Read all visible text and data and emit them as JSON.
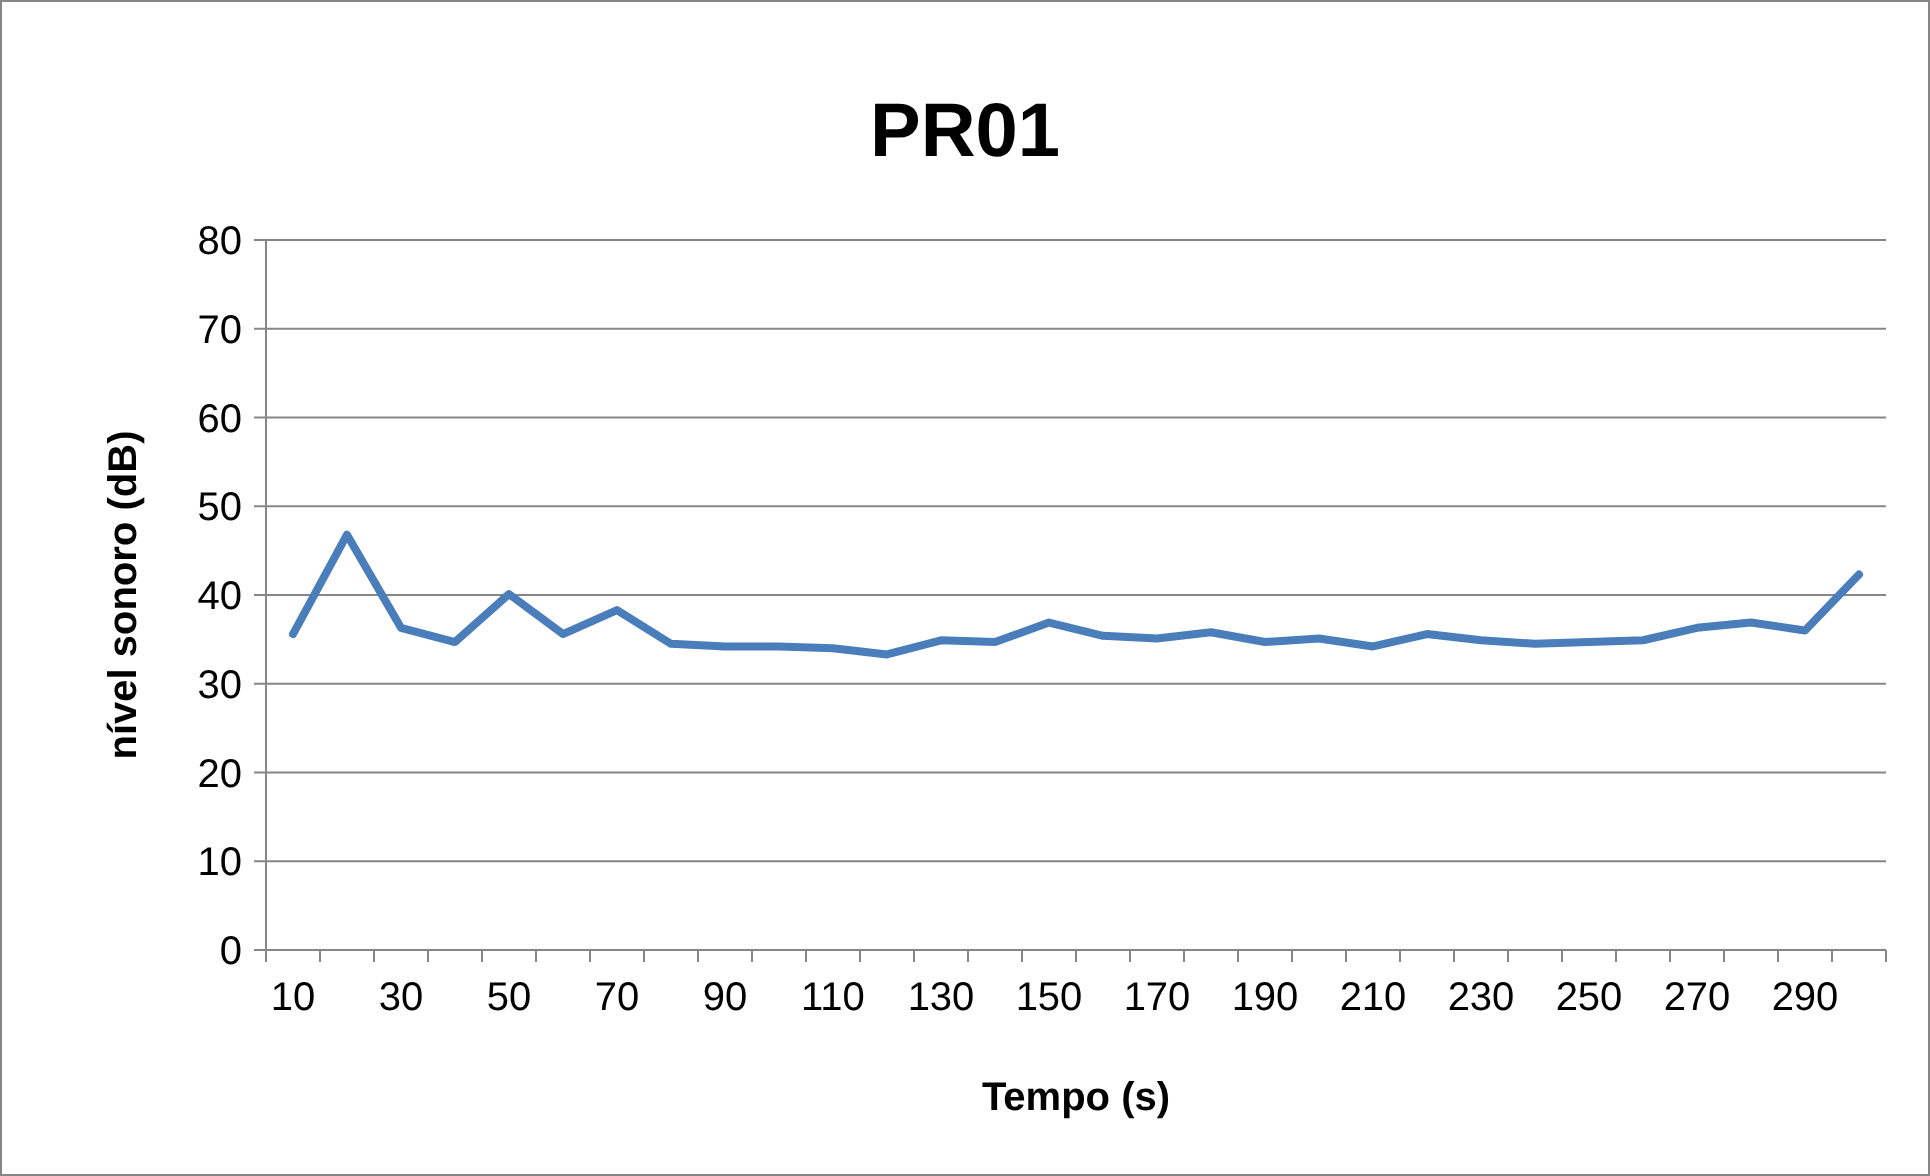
{
  "chart_data": {
    "type": "line",
    "title": "PR01",
    "xlabel": "Tempo (s)",
    "ylabel": "nível sonoro (dB)",
    "categories": [
      "10",
      null,
      "30",
      null,
      "50",
      null,
      "70",
      null,
      "90",
      null,
      "110",
      null,
      "130",
      null,
      "150",
      null,
      "170",
      null,
      "190",
      null,
      "210",
      null,
      "230",
      null,
      "250",
      null,
      "270",
      null,
      "290",
      null
    ],
    "series": [
      {
        "color": "#4a7ebb",
        "values": [
          35.6,
          46.8,
          36.3,
          34.7,
          40.1,
          35.6,
          38.3,
          34.5,
          34.2,
          34.2,
          34.0,
          33.3,
          34.9,
          34.7,
          36.9,
          35.4,
          35.1,
          35.8,
          34.7,
          35.1,
          34.2,
          35.6,
          34.9,
          34.5,
          34.7,
          34.9,
          36.3,
          36.9,
          36.0,
          42.3
        ]
      }
    ],
    "ylim": [
      0,
      80
    ],
    "yticks": [
      0,
      10,
      20,
      30,
      40,
      50,
      60,
      70,
      80
    ],
    "grid": "y",
    "marker": "none",
    "line_style": "solid"
  }
}
